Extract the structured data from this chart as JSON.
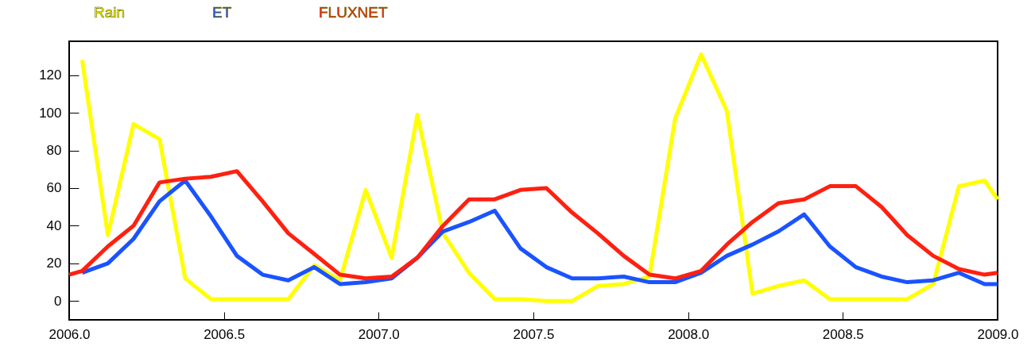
{
  "chart_data": {
    "type": "line",
    "xlim": [
      2006.0,
      2009.0
    ],
    "xticks": [
      {
        "value": 2006.0,
        "label": "2006.0"
      },
      2006.5,
      {
        "value": 2007.0,
        "label": "2007.0"
      },
      2007.5,
      {
        "value": 2008.0,
        "label": "2008.0"
      },
      2008.5,
      {
        "value": 2009.0,
        "label": "2009.0"
      }
    ],
    "ylim": [
      -10,
      138
    ],
    "yticks": [
      0,
      20,
      40,
      60,
      80,
      100,
      120
    ],
    "legend": "top left",
    "grid": false,
    "series": [
      {
        "name": "Rain",
        "color": "#ffff00",
        "x": [
          2006.042,
          2006.125,
          2006.208,
          2006.292,
          2006.375,
          2006.458,
          2006.542,
          2006.625,
          2006.708,
          2006.792,
          2006.875,
          2006.958,
          2007.042,
          2007.125,
          2007.208,
          2007.292,
          2007.375,
          2007.458,
          2007.542,
          2007.625,
          2007.708,
          2007.792,
          2007.875,
          2007.958,
          2008.042,
          2008.125,
          2008.208,
          2008.292,
          2008.375,
          2008.458,
          2008.542,
          2008.625,
          2008.708,
          2008.792,
          2008.875,
          2008.958,
          2009.0
        ],
        "values": [
          128,
          35,
          94,
          86,
          12,
          1,
          1,
          1,
          1,
          19,
          11,
          59,
          23,
          99,
          36,
          15,
          1,
          1,
          0,
          0,
          8,
          9,
          13,
          97,
          131,
          101,
          4,
          8,
          11,
          1,
          1,
          1,
          1,
          9,
          61,
          64,
          54
        ]
      },
      {
        "name": "ET",
        "color": "#1a53ff",
        "x": [
          2006.042,
          2006.125,
          2006.208,
          2006.292,
          2006.375,
          2006.458,
          2006.542,
          2006.625,
          2006.708,
          2006.792,
          2006.875,
          2006.958,
          2007.042,
          2007.125,
          2007.208,
          2007.292,
          2007.375,
          2007.458,
          2007.542,
          2007.625,
          2007.708,
          2007.792,
          2007.875,
          2007.958,
          2008.042,
          2008.125,
          2008.208,
          2008.292,
          2008.375,
          2008.458,
          2008.542,
          2008.625,
          2008.708,
          2008.792,
          2008.875,
          2008.958,
          2009.0
        ],
        "values": [
          15,
          20,
          33,
          53,
          64,
          45,
          24,
          14,
          11,
          18,
          9,
          10,
          12,
          23,
          37,
          42,
          48,
          28,
          18,
          12,
          12,
          13,
          10,
          10,
          15,
          24,
          30,
          37,
          46,
          29,
          18,
          13,
          10,
          11,
          15,
          9,
          9
        ]
      },
      {
        "name": "FLUXNET",
        "color": "#ff2010",
        "x": [
          2006.0,
          2006.042,
          2006.125,
          2006.208,
          2006.292,
          2006.375,
          2006.458,
          2006.542,
          2006.625,
          2006.708,
          2006.792,
          2006.875,
          2006.958,
          2007.042,
          2007.125,
          2007.208,
          2007.292,
          2007.375,
          2007.458,
          2007.542,
          2007.625,
          2007.708,
          2007.792,
          2007.875,
          2007.958,
          2008.042,
          2008.125,
          2008.208,
          2008.292,
          2008.375,
          2008.458,
          2008.542,
          2008.625,
          2008.708,
          2008.792,
          2008.875,
          2008.958,
          2009.0
        ],
        "values": [
          14,
          16,
          29,
          40,
          63,
          65,
          66,
          69,
          53,
          36,
          25,
          14,
          12,
          13,
          23,
          40,
          54,
          54,
          59,
          60,
          47,
          36,
          24,
          14,
          12,
          16,
          30,
          42,
          52,
          54,
          61,
          61,
          50,
          35,
          24,
          17,
          14,
          15
        ]
      }
    ]
  }
}
